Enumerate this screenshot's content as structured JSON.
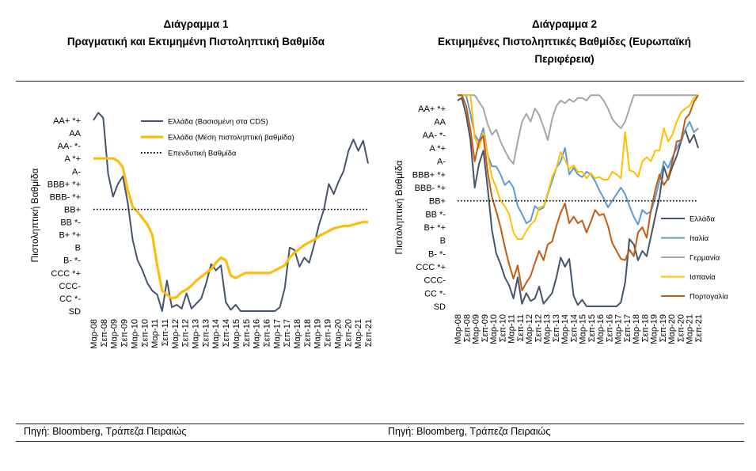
{
  "chart_data": [
    {
      "type": "line",
      "title": "Διάγραμμα 1",
      "subtitle": "Πραγματική και Εκτιμημένη Πιστοληπτική Βαθμίδα",
      "ylabel": "Πιστοληπτική Βαθμίδα",
      "y_tick_labels": [
        "AA+ *+",
        "AA",
        "AA- *-",
        "A *+",
        "A-",
        "BBB+ *+",
        "BBB- *+",
        "BB+",
        "BB *-",
        "B+ *+",
        "B",
        "B- *-",
        "CCC *+",
        "CCC-",
        "CC *-",
        "SD"
      ],
      "x_tick_labels": [
        "Μαρ-08",
        "Σεπ-08",
        "Μαρ-09",
        "Σεπ-09",
        "Μαρ-10",
        "Σεπ-10",
        "Μαρ-11",
        "Σεπ-11",
        "Μαρ-12",
        "Σεπ-12",
        "Μαρ-13",
        "Σεπ-13",
        "Μαρ-14",
        "Σεπ-14",
        "Μαρ-15",
        "Σεπ-15",
        "Μαρ-16",
        "Σεπ-16",
        "Μαρ-17",
        "Σεπ-17",
        "Μαρ-18",
        "Σεπ-18",
        "Μαρ-19",
        "Σεπ-19",
        "Μαρ-20",
        "Σεπ-20",
        "Μαρ-21",
        "Σεπ-21"
      ],
      "legend_placement": "top-right",
      "series": [
        {
          "name": "Ελλάδα (Βασισμένη στα CDS)",
          "color": "#44546a",
          "style": "solid",
          "values": [
            15,
            15.6,
            15.2,
            10.8,
            9.0,
            10.0,
            10.6,
            8.5,
            5.6,
            4.0,
            3.2,
            2.2,
            1.6,
            1.3,
            0,
            2.4,
            0.3,
            0.5,
            0.2,
            1.4,
            0.2,
            0.6,
            1.0,
            2.2,
            3.7,
            3.2,
            3.6,
            0.7,
            0.1,
            0.5,
            0,
            0,
            0,
            0,
            0,
            0,
            0,
            0,
            0.3,
            1.8,
            5.0,
            4.8,
            3.5,
            4.2,
            3.8,
            5.2,
            6.8,
            8.0,
            10.0,
            9.2,
            10.2,
            11.0,
            12.6,
            13.5,
            12.6,
            13.4,
            11.6
          ]
        },
        {
          "name": "Ελλάδα (Μέση πιστοληπτική βαθμίδα)",
          "color": "#fdbd10",
          "style": "solid",
          "values": [
            12,
            12,
            12,
            12,
            12,
            11.8,
            11.3,
            9.5,
            8.2,
            7.8,
            7.3,
            6.8,
            6.0,
            3.6,
            1.6,
            1.3,
            1.0,
            1.1,
            1.5,
            1.7,
            2.0,
            2.4,
            2.7,
            3.0,
            3.3,
            3.8,
            4.2,
            4.0,
            2.8,
            2.6,
            2.8,
            3.0,
            3.0,
            3.0,
            3.0,
            3.0,
            3.0,
            3.2,
            3.4,
            3.6,
            4.2,
            4.6,
            4.9,
            5.2,
            5.4,
            5.6,
            5.9,
            6.1,
            6.3,
            6.5,
            6.6,
            6.7,
            6.7,
            6.8,
            6.9,
            7.0,
            7.0
          ]
        },
        {
          "name": "Επενδυτική Βαθμίδα",
          "color": "#000000",
          "style": "dotted",
          "values": [
            8,
            8
          ]
        }
      ]
    },
    {
      "type": "line",
      "title": "Διάγραμμα 2",
      "subtitle_line1": "Εκτιμημένες Πιστοληπτικές Βαθμίδες (Ευρωπαϊκή",
      "subtitle_line2": "Περιφέρεια)",
      "ylabel": "Πιστοληπτική Βαθμίδα",
      "y_tick_labels": [
        "AA+ *+",
        "AA",
        "AA- *-",
        "A *+",
        "A-",
        "BBB+ *+",
        "BBB- *+",
        "BB+",
        "BB *-",
        "B+ *+",
        "B",
        "B- *-",
        "CCC *+",
        "CCC-",
        "CC *-",
        "SD"
      ],
      "x_tick_labels": [
        "Μαρ-08",
        "Σεπ-08",
        "Μαρ-09",
        "Σεπ-09",
        "Μαρ-10",
        "Σεπ-10",
        "Μαρ-11",
        "Σεπ-11",
        "Μαρ-12",
        "Σεπ-12",
        "Μαρ-13",
        "Σεπ-13",
        "Μαρ-14",
        "Σεπ-14",
        "Μαρ-15",
        "Σεπ-15",
        "Μαρ-16",
        "Σεπ-16",
        "Μαρ-17",
        "Σεπ-17",
        "Μαρ-18",
        "Σεπ-18",
        "Μαρ-19",
        "Σεπ-19",
        "Μαρ-20",
        "Σεπ-20",
        "Μαρ-21",
        "Σεπ-21"
      ],
      "legend_placement": "right",
      "investment_grade_line": 8,
      "series": [
        {
          "name": "Ελλάδα",
          "color": "#44546a",
          "values": [
            15.6,
            15.8,
            14.5,
            12.6,
            9.0,
            10.8,
            11.8,
            9.0,
            5.8,
            4.0,
            3.2,
            2.2,
            1.6,
            0.6,
            2.2,
            0.2,
            1.0,
            0.4,
            0.6,
            1.5,
            0.2,
            0.6,
            1.0,
            2.2,
            3.7,
            3.0,
            3.6,
            0.8,
            0.1,
            0.5,
            0,
            0,
            0,
            0,
            0,
            0,
            0,
            0,
            0.3,
            1.8,
            5.1,
            4.7,
            3.5,
            4.2,
            3.8,
            5.3,
            6.8,
            8.3,
            10.6,
            9.6,
            10.6,
            11.4,
            12.5,
            13.4,
            12.4,
            13.0,
            12.0
          ]
        },
        {
          "name": "Ιταλία",
          "color": "#5b9bd5",
          "values": [
            16,
            16,
            16,
            14.6,
            13.0,
            12.5,
            13.5,
            11.5,
            10.6,
            10.6,
            10.0,
            9.2,
            9.5,
            9.0,
            7.6,
            7.0,
            6.3,
            6.5,
            7.6,
            7.3,
            7.5,
            8.5,
            9.5,
            10.5,
            11.0,
            12.0,
            10.0,
            10.5,
            10.0,
            9.8,
            10.2,
            10.0,
            9.5,
            8.8,
            8.2,
            7.5,
            8.0,
            8.5,
            9.0,
            8.5,
            7.6,
            6.8,
            6.2,
            7.3,
            7.0,
            7.2,
            8.2,
            9.5,
            11.0,
            10.5,
            11.3,
            12.0,
            12.6,
            13.4,
            14.0,
            13.2,
            13.5
          ]
        },
        {
          "name": "Γερμανία",
          "color": "#a5a5a5",
          "values": [
            16,
            16,
            16,
            16,
            16,
            15.5,
            15.0,
            13.8,
            13.0,
            13.4,
            12.5,
            11.8,
            11.2,
            10.8,
            12.5,
            14.0,
            14.6,
            14.0,
            15.0,
            14.5,
            13.6,
            12.6,
            14.2,
            15.2,
            15.6,
            15.4,
            15.7,
            15.5,
            15.8,
            15.8,
            15.6,
            16,
            16,
            16,
            15.6,
            15.0,
            14.2,
            13.8,
            13.5,
            14.0,
            15.0,
            16,
            16,
            16,
            16,
            16,
            16,
            16,
            16,
            16,
            16,
            16,
            16,
            16,
            16,
            16,
            16
          ]
        },
        {
          "name": "Ισπανία",
          "color": "#ffc000",
          "values": [
            16,
            16,
            16,
            16,
            12.8,
            12.0,
            13.2,
            11.5,
            9.8,
            9.0,
            8.0,
            7.6,
            7.0,
            5.6,
            5.1,
            5.1,
            5.7,
            6.2,
            6.5,
            7.5,
            7.6,
            8.6,
            9.8,
            10.5,
            11.7,
            11.1,
            10.4,
            10.7,
            10.2,
            10.2,
            9.7,
            10.1,
            9.7,
            9.8,
            9.6,
            9.6,
            10.2,
            10.0,
            9.7,
            13.2,
            10.3,
            10.2,
            9.8,
            11.0,
            11.3,
            11.0,
            11.8,
            11.8,
            13.5,
            12.5,
            13.0,
            14.0,
            14.7,
            15.0,
            15.2,
            15.8,
            16.0
          ]
        },
        {
          "name": "Πορτογαλία",
          "color": "#c55a11",
          "values": [
            16,
            16,
            15.2,
            13.4,
            11.0,
            12.5,
            12.9,
            10.2,
            8.3,
            7.2,
            6.0,
            4.5,
            3.2,
            2.1,
            3.1,
            1.2,
            1.8,
            2.3,
            3.3,
            4.2,
            3.5,
            4.7,
            4.9,
            6.1,
            7.1,
            7.8,
            6.3,
            6.8,
            6.3,
            6.5,
            5.6,
            6.4,
            7.3,
            6.9,
            7.0,
            6.1,
            4.8,
            4.2,
            3.6,
            3.5,
            4.3,
            3.8,
            5.6,
            6.0,
            5.2,
            7.3,
            8.8,
            10.0,
            9.2,
            9.7,
            11.0,
            12.5,
            12.6,
            14.2,
            14.6,
            15.5,
            16.0
          ]
        }
      ]
    }
  ],
  "footer": {
    "source_left": "Πηγή: Bloomberg, Τράπεζα Πειραιώς",
    "source_right": "Πηγή: Bloomberg, Τράπεζα Πειραιώς"
  }
}
